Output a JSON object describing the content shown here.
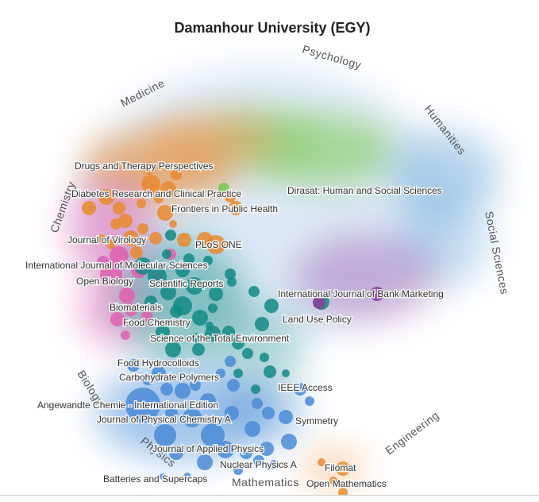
{
  "chart_data": {
    "type": "scatter",
    "title": "Damanhour University (EGY)",
    "fields": [
      "Psychology",
      "Medicine",
      "Humanities",
      "Chemistry",
      "Social Sciences",
      "Biology",
      "Physics",
      "Engineering",
      "Mathematics"
    ],
    "journals": [
      "Drugs and Therapy Perspectives",
      "Diabetes Research and Clinical Practice",
      "Frontiers in Public Health",
      "Dirasat: Human and Social Sciences",
      "Journal of Virology",
      "PLoS ONE",
      "International Journal of Molecular Sciences",
      "Open Biology",
      "Scientific Reports",
      "International Journal of Bank Marketing",
      "Biomaterials",
      "Land Use Policy",
      "Food Chemistry",
      "Science of the Total Environment",
      "Food Hydrocolloids",
      "Carbohydrate Polymers",
      "IEEE Access",
      "Angewandte Chemie - International Edition",
      "Journal of Physical Chemistry A",
      "Symmetry",
      "Journal of Applied Physics",
      "Nuclear Physics A",
      "Filomat",
      "Batteries and Supercaps",
      "Open Mathematics"
    ],
    "grid": false,
    "legend": "none"
  },
  "colors": {
    "medicine": "#e8892f",
    "biology": "#e05fb0",
    "chemistry": "#138a86",
    "physics": "#4a8bd6",
    "social": "#8a3c9c",
    "humanities": "#7ac74f",
    "engineering": "#7fb2dd"
  }
}
